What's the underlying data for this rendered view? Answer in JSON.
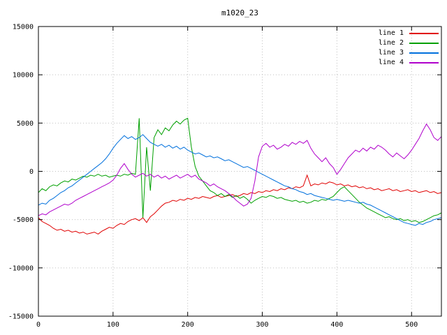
{
  "chart_data": {
    "type": "line",
    "title": "m1020_23",
    "xlabel": "",
    "ylabel": "",
    "xlim": [
      0,
      540
    ],
    "ylim": [
      -15000,
      15000
    ],
    "xticks": [
      0,
      100,
      200,
      300,
      400,
      500
    ],
    "yticks": [
      -15000,
      -10000,
      -5000,
      0,
      5000,
      10000,
      15000
    ],
    "grid": true,
    "legend_position": "top-right",
    "x_start": 0,
    "x_step": 5,
    "series": [
      {
        "name": "line 1",
        "color": "#e00000",
        "values": [
          -4800,
          -5200,
          -5400,
          -5600,
          -5900,
          -6100,
          -6000,
          -6200,
          -6100,
          -6300,
          -6200,
          -6400,
          -6300,
          -6500,
          -6400,
          -6300,
          -6500,
          -6200,
          -6000,
          -5800,
          -5900,
          -5600,
          -5400,
          -5500,
          -5200,
          -5000,
          -4900,
          -5100,
          -4800,
          -5300,
          -4700,
          -4400,
          -4000,
          -3600,
          -3300,
          -3200,
          -3000,
          -3100,
          -2900,
          -3000,
          -2800,
          -2900,
          -2700,
          -2800,
          -2600,
          -2700,
          -2800,
          -2600,
          -2500,
          -2700,
          -2600,
          -2500,
          -2400,
          -2600,
          -2500,
          -2300,
          -2400,
          -2200,
          -2300,
          -2100,
          -2200,
          -2000,
          -2100,
          -1900,
          -2000,
          -1800,
          -1900,
          -1700,
          -1800,
          -1600,
          -1700,
          -1500,
          -400,
          -1500,
          -1300,
          -1400,
          -1200,
          -1300,
          -1100,
          -1200,
          -1400,
          -1300,
          -1500,
          -1400,
          -1600,
          -1500,
          -1700,
          -1600,
          -1800,
          -1700,
          -1900,
          -1800,
          -2000,
          -1900,
          -1800,
          -2000,
          -1900,
          -2100,
          -2000,
          -1900,
          -2100,
          -2000,
          -2200,
          -2100,
          -2000,
          -2200,
          -2100,
          -2300,
          -2200
        ]
      },
      {
        "name": "line 2",
        "color": "#00a000",
        "values": [
          -2200,
          -1800,
          -2000,
          -1600,
          -1400,
          -1500,
          -1200,
          -1000,
          -1100,
          -800,
          -900,
          -700,
          -500,
          -600,
          -400,
          -500,
          -300,
          -500,
          -400,
          -600,
          -500,
          -400,
          -500,
          -300,
          -400,
          -200,
          -300,
          5500,
          -4800,
          2500,
          -2000,
          3500,
          4300,
          3800,
          4500,
          4200,
          4800,
          5200,
          4900,
          5300,
          5500,
          2500,
          500,
          -500,
          -1000,
          -1500,
          -2000,
          -2200,
          -2500,
          -2300,
          -2600,
          -2400,
          -2700,
          -2500,
          -2800,
          -2600,
          -2900,
          -3300,
          -3000,
          -2800,
          -2600,
          -2700,
          -2500,
          -2600,
          -2800,
          -2700,
          -2900,
          -3000,
          -3100,
          -3000,
          -3200,
          -3100,
          -3300,
          -3200,
          -3000,
          -3100,
          -2900,
          -3000,
          -2800,
          -2600,
          -2200,
          -1800,
          -1600,
          -2000,
          -2400,
          -2800,
          -3200,
          -3500,
          -3800,
          -4000,
          -4200,
          -4400,
          -4600,
          -4800,
          -4700,
          -4900,
          -5000,
          -4900,
          -5100,
          -5000,
          -5200,
          -5100,
          -5300,
          -5200,
          -5000,
          -4800,
          -4600,
          -4500,
          -4300
        ]
      },
      {
        "name": "line 3",
        "color": "#0070dd",
        "values": [
          -3500,
          -3300,
          -3400,
          -3000,
          -2800,
          -2500,
          -2200,
          -2000,
          -1700,
          -1500,
          -1200,
          -900,
          -600,
          -300,
          0,
          300,
          600,
          900,
          1300,
          1800,
          2400,
          2900,
          3300,
          3700,
          3400,
          3600,
          3300,
          3500,
          3800,
          3400,
          3000,
          2800,
          2600,
          2800,
          2500,
          2700,
          2400,
          2600,
          2300,
          2500,
          2200,
          2000,
          1800,
          1900,
          1700,
          1500,
          1600,
          1400,
          1500,
          1300,
          1100,
          1200,
          1000,
          800,
          600,
          400,
          500,
          300,
          100,
          -100,
          -300,
          -500,
          -700,
          -900,
          -1100,
          -1300,
          -1500,
          -1600,
          -1800,
          -1900,
          -2100,
          -2200,
          -2400,
          -2300,
          -2500,
          -2600,
          -2700,
          -2800,
          -2900,
          -3000,
          -2900,
          -3000,
          -3100,
          -3000,
          -3100,
          -3200,
          -3300,
          -3200,
          -3400,
          -3500,
          -3700,
          -3900,
          -4100,
          -4300,
          -4500,
          -4700,
          -4900,
          -5100,
          -5300,
          -5400,
          -5500,
          -5600,
          -5400,
          -5500,
          -5300,
          -5200,
          -5000,
          -4900,
          -4800
        ]
      },
      {
        "name": "line 4",
        "color": "#b000cc",
        "values": [
          -4600,
          -4400,
          -4500,
          -4200,
          -4000,
          -3800,
          -3600,
          -3400,
          -3500,
          -3300,
          -3000,
          -2800,
          -2600,
          -2400,
          -2200,
          -2000,
          -1800,
          -1600,
          -1400,
          -1200,
          -900,
          -400,
          300,
          800,
          200,
          -300,
          -600,
          -400,
          -200,
          -500,
          -300,
          -600,
          -400,
          -700,
          -500,
          -800,
          -600,
          -400,
          -700,
          -500,
          -300,
          -600,
          -400,
          -800,
          -1000,
          -1200,
          -1500,
          -1300,
          -1600,
          -1800,
          -2000,
          -2300,
          -2600,
          -3000,
          -3300,
          -3600,
          -3400,
          -2800,
          -1000,
          1500,
          2600,
          2900,
          2500,
          2700,
          2300,
          2500,
          2800,
          2600,
          3000,
          2800,
          3100,
          2900,
          3200,
          2400,
          1800,
          1400,
          1000,
          1400,
          800,
          400,
          -300,
          200,
          800,
          1400,
          1800,
          2200,
          2000,
          2400,
          2100,
          2500,
          2300,
          2700,
          2500,
          2200,
          1800,
          1500,
          1900,
          1600,
          1300,
          1700,
          2200,
          2800,
          3400,
          4200,
          4900,
          4300,
          3500,
          3200,
          3600
        ]
      }
    ],
    "colors": {
      "axis": "#000000",
      "grid": "#c0c0c0",
      "background": "#ffffff"
    }
  }
}
